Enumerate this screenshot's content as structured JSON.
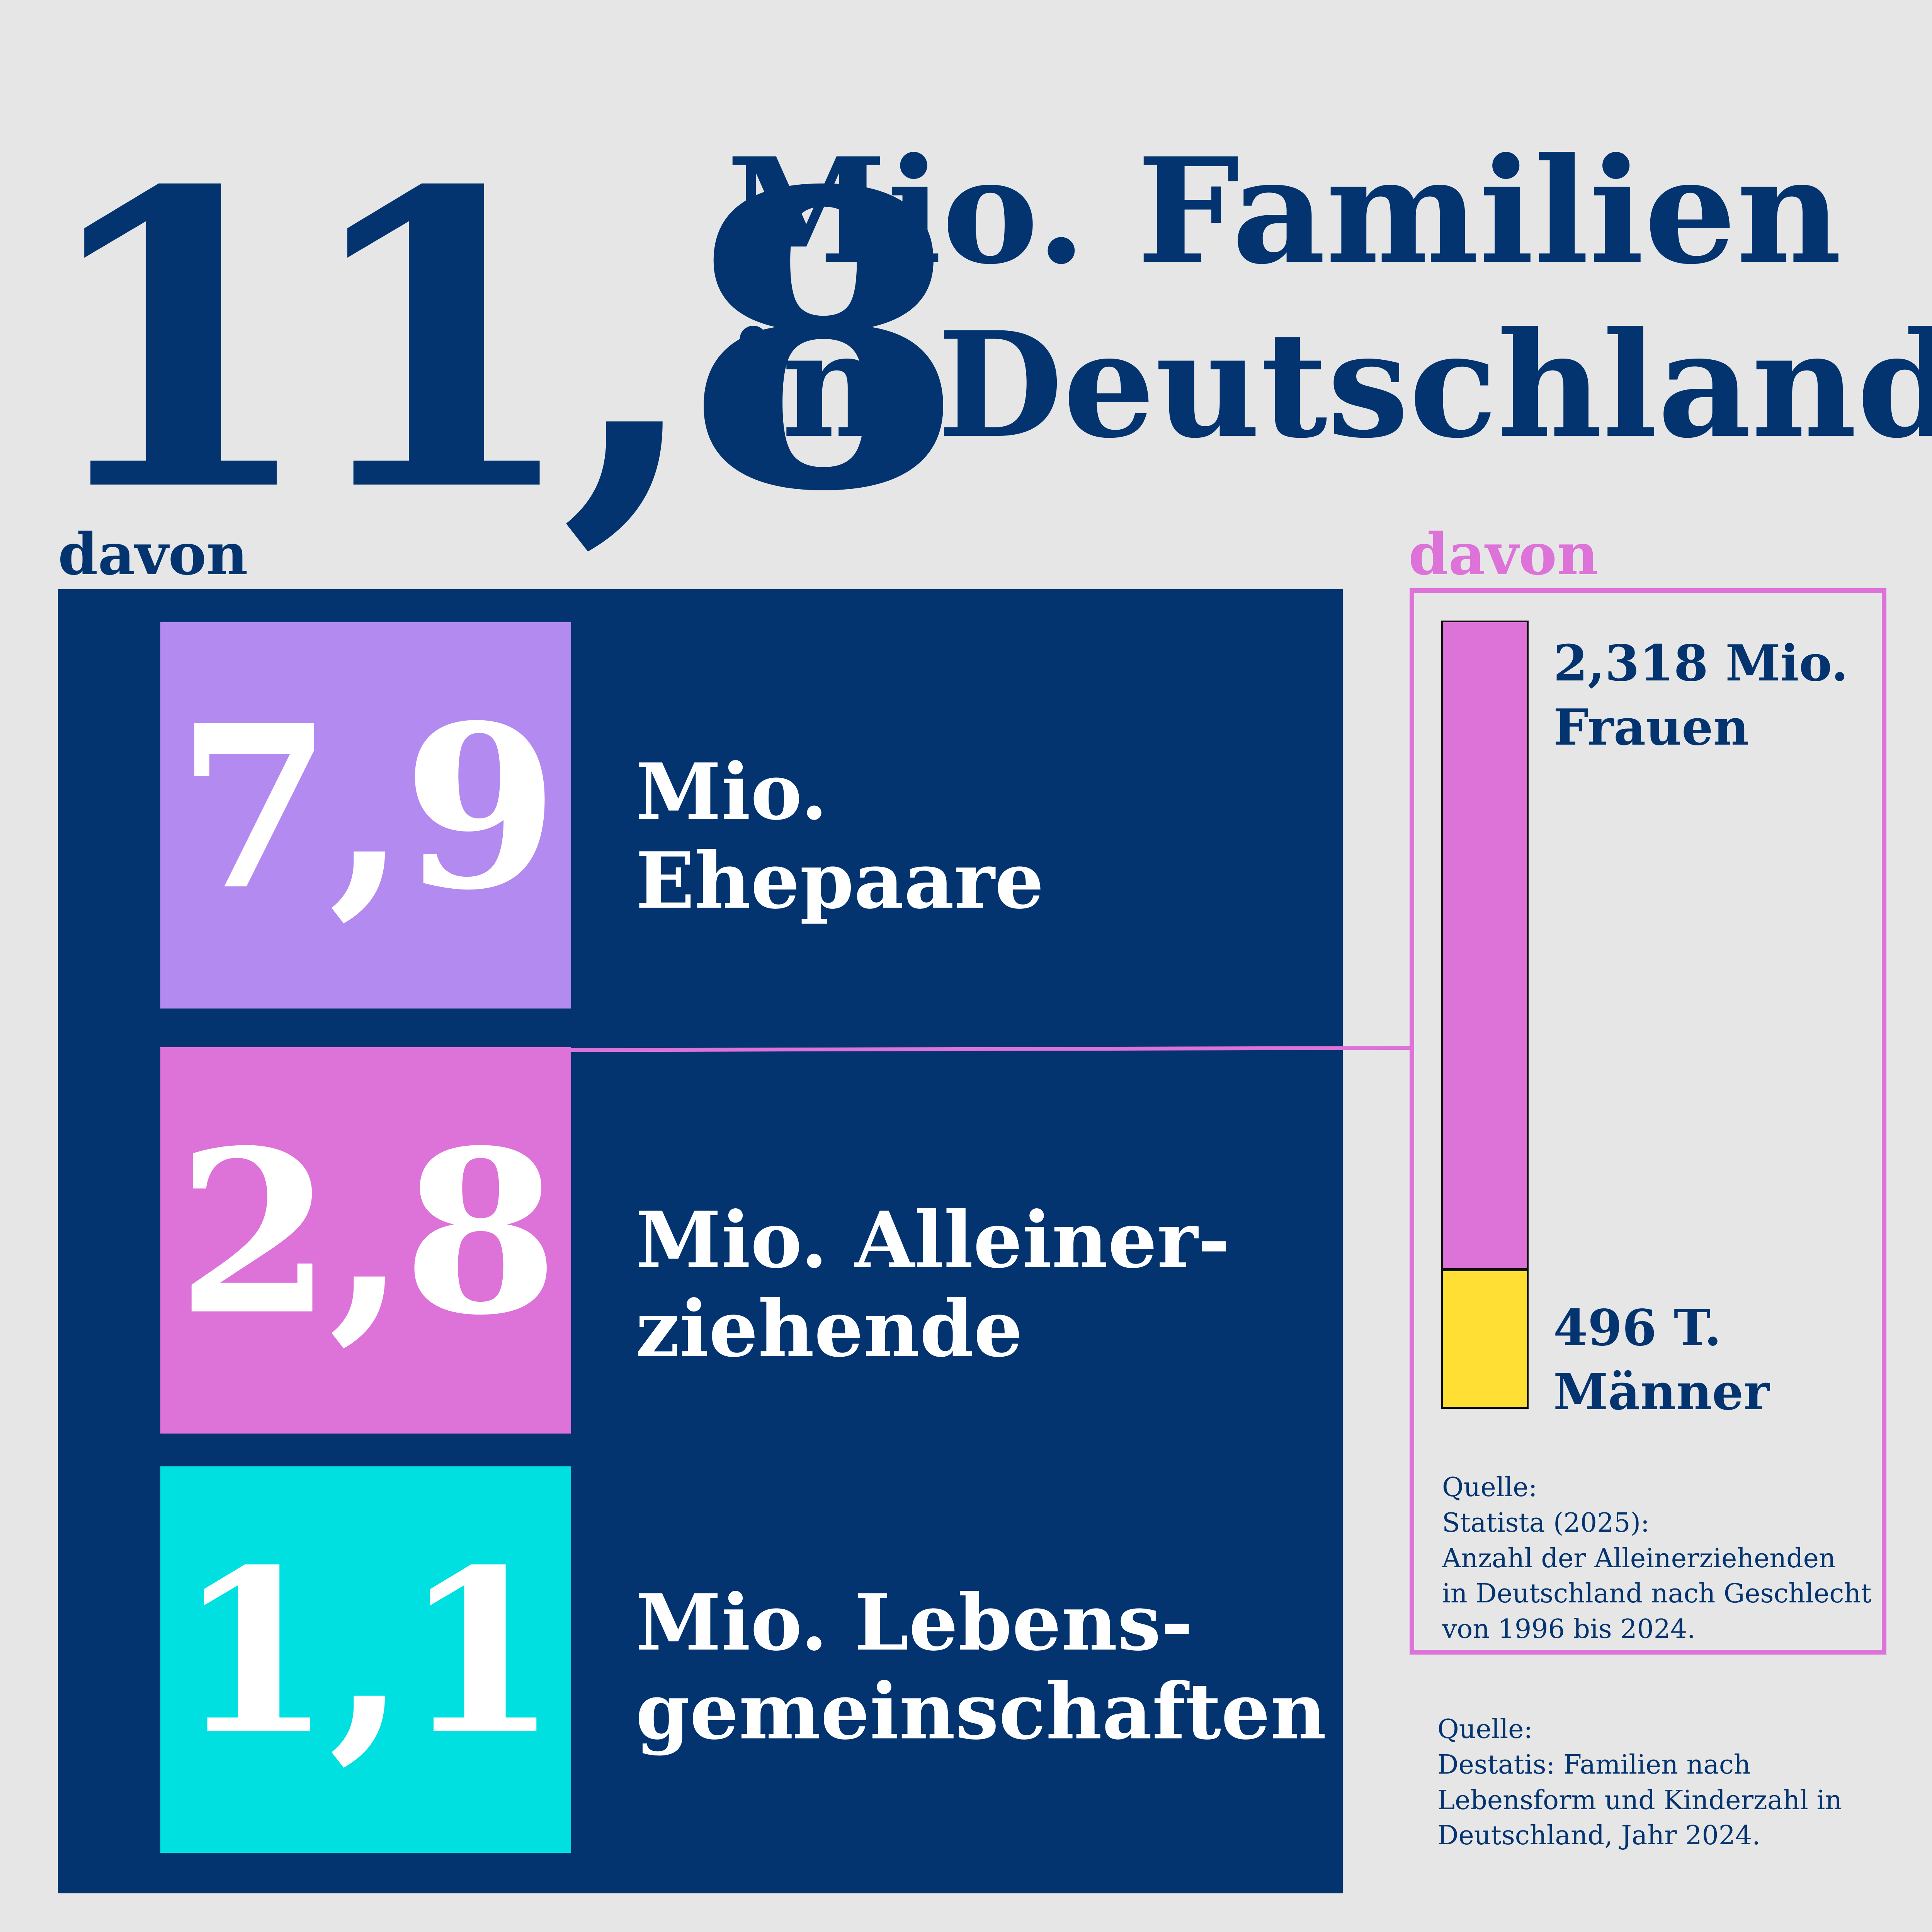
{
  "headline": {
    "number": "11,8",
    "line1": "Mio. Familien",
    "line2": "in Deutschland"
  },
  "left_section": {
    "davon": "davon",
    "items": [
      {
        "value": "7,9",
        "label_line1": "Mio.",
        "label_line2": "Ehepaare",
        "color": "#b38bf0"
      },
      {
        "value": "2,8",
        "label_line1": "Mio. Alleiner-",
        "label_line2": "ziehende",
        "color": "#dd72d8"
      },
      {
        "value": "1,1",
        "label_line1": "Mio. Lebens-",
        "label_line2": "gemeinschaften",
        "color": "#00e0e0"
      }
    ],
    "source": {
      "heading": "Quelle:",
      "lines": [
        "Destatis: Familien nach",
        "Lebensform und Kinderzahl in",
        "Deutschland, Jahr 2024."
      ]
    }
  },
  "right_section": {
    "davon": "davon",
    "frauen_label_line1": "2,318 Mio.",
    "frauen_label_line2": "Frauen",
    "maenner_label_line1": "496 T.",
    "maenner_label_line2": "Männer",
    "source": {
      "heading": "Quelle:",
      "lines": [
        "Statista (2025):",
        "Anzahl der Alleinerziehenden",
        "in Deutschland nach Geschlecht",
        "von 1996 bis 2024."
      ]
    }
  },
  "colors": {
    "background": "#e6e6e6",
    "navy": "#033470",
    "purple": "#b38bf0",
    "pink": "#dd72d8",
    "cyan": "#00e0e0",
    "yellow": "#ffdf33"
  },
  "chart_data": {
    "type": "bar",
    "stacked": true,
    "categories": [
      "Alleinerziehende"
    ],
    "series": [
      {
        "name": "Frauen",
        "values": [
          2.318
        ],
        "color": "#dd72d8"
      },
      {
        "name": "Männer",
        "values": [
          0.496
        ],
        "color": "#ffdf33"
      }
    ]
  }
}
